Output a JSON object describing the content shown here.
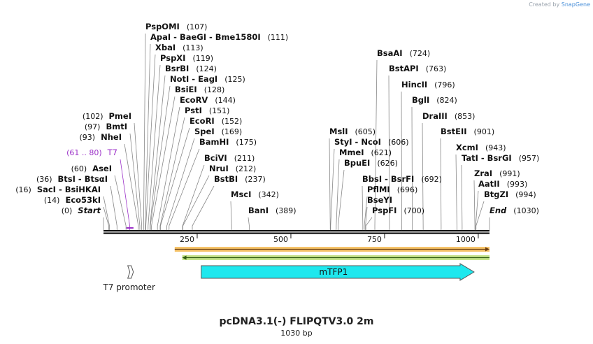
{
  "credit": {
    "prefix": "Created by",
    "brand": "SnapGene"
  },
  "map": {
    "title": "pcDNA3.1(-) FLIPQTV3.0 2m",
    "length_label": "1030 bp",
    "sequence_length": 1030,
    "ticks": [
      250,
      500,
      750,
      1000
    ],
    "colors": {
      "backbone": "#111111",
      "label": "#111111",
      "line": "#888888",
      "promoter": "#9b30c8",
      "feature_fill": "#1ee8ee",
      "orange_band": "#f6c46a",
      "green_band": "#c5e38c"
    }
  },
  "sites": [
    {
      "name": "Start",
      "pos": "(0)",
      "at": 0,
      "italic": true
    },
    {
      "name": "Eco53kI",
      "pos": "(14)",
      "at": 14
    },
    {
      "name": "SacI  -  BsiHKAI",
      "pos": "(16)",
      "at": 16
    },
    {
      "name": "BtsI  -  BtsαI",
      "pos": "(36)",
      "at": 36
    },
    {
      "name": "AseI",
      "pos": "(60)",
      "at": 60
    },
    {
      "name": "T7",
      "pos": "(61 .. 80)",
      "at": 70,
      "promoter": true
    },
    {
      "name": "NheI",
      "pos": "(93)",
      "at": 93
    },
    {
      "name": "BmtI",
      "pos": "(97)",
      "at": 97
    },
    {
      "name": "PmeI",
      "pos": "(102)",
      "at": 102
    },
    {
      "name": "PspOMI",
      "pos": "(107)",
      "at": 107
    },
    {
      "name": "ApaI  -  BaeGI  -  Bme1580I",
      "pos": "(111)",
      "at": 111
    },
    {
      "name": "XbaI",
      "pos": "(113)",
      "at": 113
    },
    {
      "name": "PspXI",
      "pos": "(119)",
      "at": 119
    },
    {
      "name": "BsrBI",
      "pos": "(124)",
      "at": 124
    },
    {
      "name": "NotI  -  EagI",
      "pos": "(125)",
      "at": 125
    },
    {
      "name": "BsiEI",
      "pos": "(128)",
      "at": 128
    },
    {
      "name": "EcoRV",
      "pos": "(144)",
      "at": 144
    },
    {
      "name": "PstI",
      "pos": "(151)",
      "at": 151
    },
    {
      "name": "EcoRI",
      "pos": "(152)",
      "at": 152
    },
    {
      "name": "SpeI",
      "pos": "(169)",
      "at": 169
    },
    {
      "name": "BamHI",
      "pos": "(175)",
      "at": 175
    },
    {
      "name": "BciVI",
      "pos": "(211)",
      "at": 211
    },
    {
      "name": "NruI",
      "pos": "(212)",
      "at": 212
    },
    {
      "name": "BstBI",
      "pos": "(237)",
      "at": 237
    },
    {
      "name": "MscI",
      "pos": "(342)",
      "at": 342
    },
    {
      "name": "BanI",
      "pos": "(389)",
      "at": 389
    },
    {
      "name": "MslI",
      "pos": "(605)",
      "at": 605
    },
    {
      "name": "StyI  -  NcoI",
      "pos": "(606)",
      "at": 606
    },
    {
      "name": "MmeI",
      "pos": "(621)",
      "at": 621
    },
    {
      "name": "BpuEI",
      "pos": "(626)",
      "at": 626
    },
    {
      "name": "BsaAI",
      "pos": "(724)",
      "at": 724
    },
    {
      "name": "BbsI  -  BsrFI",
      "pos": "(692)",
      "at": 692
    },
    {
      "name": "PflMI",
      "pos": "(696)",
      "at": 696
    },
    {
      "name": "BseYI",
      "pos": "",
      "at": 699
    },
    {
      "name": "PspFI",
      "pos": "(700)",
      "at": 700
    },
    {
      "name": "BstAPI",
      "pos": "(763)",
      "at": 763
    },
    {
      "name": "HincII",
      "pos": "(796)",
      "at": 796
    },
    {
      "name": "BglI",
      "pos": "(824)",
      "at": 824
    },
    {
      "name": "DraIII",
      "pos": "(853)",
      "at": 853
    },
    {
      "name": "BstEII",
      "pos": "(901)",
      "at": 901
    },
    {
      "name": "XcmI",
      "pos": "(943)",
      "at": 943
    },
    {
      "name": "TatI  -  BsrGI",
      "pos": "(957)",
      "at": 957
    },
    {
      "name": "ZraI",
      "pos": "(991)",
      "at": 991
    },
    {
      "name": "AatII",
      "pos": "(993)",
      "at": 993
    },
    {
      "name": "BtgZI",
      "pos": "(994)",
      "at": 994
    },
    {
      "name": "End",
      "pos": "(1030)",
      "at": 1030,
      "italic": true
    }
  ],
  "features": [
    {
      "name": "T7 promoter",
      "start": 61,
      "end": 80,
      "kind": "promoter"
    },
    {
      "name": "mTFP1",
      "start": 257,
      "end": 1000,
      "kind": "cds"
    }
  ],
  "bands": [
    {
      "name": "orange",
      "start": 190,
      "end": 1030
    },
    {
      "name": "green",
      "start": 210,
      "end": 1030
    }
  ]
}
